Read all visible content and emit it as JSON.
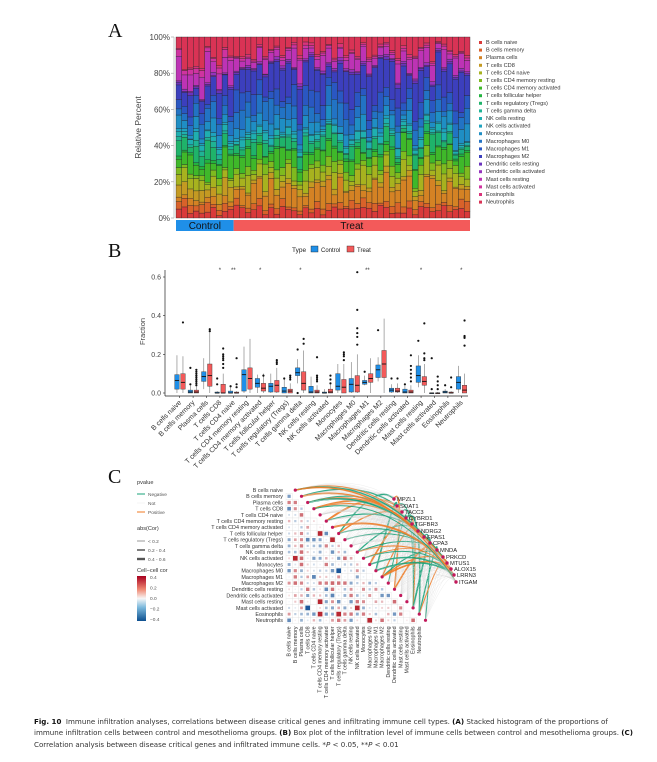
{
  "figure": {
    "panels": [
      "A",
      "B",
      "C"
    ],
    "caption": {
      "label": "Fig. 10",
      "text_1": "Immune infiltration analyses, correlations between disease critical genes and infiltrating immune cell types. ",
      "a_label": "(A)",
      "a_text": " Stacked histogram of the proportions of immune infiltration cells between control and mesothelioma groups. ",
      "b_label": "(B)",
      "b_text": " Box plot of the infiltration level of immune cells between control and mesothelioma groups. ",
      "c_label": "(C)",
      "c_text": " Correlation analysis between disease critical genes and infiltrated immune cells. *",
      "p1": "P",
      "t1": " < 0.05, **",
      "p2": "P",
      "t2": " < 0.01"
    }
  },
  "chart_data": [
    {
      "panel": "A",
      "type": "bar",
      "stacked": true,
      "title": "",
      "xlabel": "",
      "ylabel": "Relative Percent",
      "ylim": [
        0,
        100
      ],
      "yticks": [
        "0%",
        "20%",
        "40%",
        "60%",
        "80%",
        "100%"
      ],
      "groups": [
        {
          "name": "Control",
          "count": 10,
          "color": "#1f8fe8"
        },
        {
          "name": "Treat",
          "count": 41,
          "color": "#f35a5a"
        }
      ],
      "legend_position": "right",
      "series": [
        {
          "name": "B cells naive",
          "color": "#d93a3a"
        },
        {
          "name": "B cells memory",
          "color": "#d9622a"
        },
        {
          "name": "Plasma cells",
          "color": "#d48224"
        },
        {
          "name": "T cells CD8",
          "color": "#c49a22"
        },
        {
          "name": "T cells CD4 naive",
          "color": "#a7b21f"
        },
        {
          "name": "T cells CD4 memory resting",
          "color": "#7fba1f"
        },
        {
          "name": "T cells CD4 memory activated",
          "color": "#3fb82a"
        },
        {
          "name": "T cells follicular helper",
          "color": "#22b33f"
        },
        {
          "name": "T cells regulatory (Tregs)",
          "color": "#1fb36a"
        },
        {
          "name": "T cells gamma delta",
          "color": "#1fb394"
        },
        {
          "name": "NK cells resting",
          "color": "#1fafb0"
        },
        {
          "name": "NK cells activated",
          "color": "#1fa3bf"
        },
        {
          "name": "Monocytes",
          "color": "#1f8ec4"
        },
        {
          "name": "Macrophages M0",
          "color": "#2273c4"
        },
        {
          "name": "Macrophages M1",
          "color": "#2a57c2"
        },
        {
          "name": "Macrophages M2",
          "color": "#3c3fbd"
        },
        {
          "name": "Dendritic cells resting",
          "color": "#6a33bd"
        },
        {
          "name": "Dendritic cells activated",
          "color": "#9533bd"
        },
        {
          "name": "Mast cells resting",
          "color": "#bd33b5"
        },
        {
          "name": "Mast cells activated",
          "color": "#cf33a0"
        },
        {
          "name": "Eosinophils",
          "color": "#d9337a"
        },
        {
          "name": "Neutrophils",
          "color": "#d93355"
        }
      ],
      "approx_group_means_percent": {
        "Control": [
          4,
          3,
          4,
          8,
          5,
          3,
          8,
          1,
          6,
          2,
          3,
          1,
          5,
          6,
          4,
          10,
          1,
          1,
          10,
          3,
          1,
          12
        ],
        "Treat": [
          4,
          3,
          9,
          2,
          6,
          4,
          7,
          1,
          5,
          1,
          3,
          1,
          5,
          7,
          7,
          15,
          1,
          1,
          7,
          1,
          1,
          7
        ]
      }
    },
    {
      "panel": "B",
      "type": "box",
      "title": "",
      "xlabel": "",
      "ylabel": "Fraction",
      "ylim": [
        0,
        0.65
      ],
      "yticks": [
        "0.0",
        "0.2",
        "0.4",
        "0.6"
      ],
      "legend": {
        "title": "Type",
        "entries": [
          {
            "name": "Control",
            "color": "#1f8fe8"
          },
          {
            "name": "Treat",
            "color": "#f35a5a"
          }
        ],
        "position": "top"
      },
      "categories": [
        "B cells naive",
        "B cells memory",
        "Plasma cells",
        "T cells CD8",
        "T cells CD4 naive",
        "T cells CD4 memory resting",
        "T cells CD4 memory activated",
        "T cells follicular helper",
        "T cells regulatory (Tregs)",
        "T cells gamma delta",
        "NK cells resting",
        "NK cells activated",
        "Monocytes",
        "Macrophages M0",
        "Macrophages M1",
        "Macrophages M2",
        "Dendritic cells resting",
        "Dendritic cells activated",
        "Mast cells resting",
        "Mast cells activated",
        "Eosinophils",
        "Neutrophils"
      ],
      "significance": [
        "",
        "",
        "",
        "*",
        "**",
        "",
        "*",
        "",
        "",
        "*",
        "",
        "",
        "",
        "",
        "**",
        "",
        "",
        "",
        "*",
        "",
        "",
        "*"
      ],
      "series": [
        {
          "name": "Control",
          "boxes": [
            [
              0.0,
              0.02,
              0.065,
              0.095,
              0.195
            ],
            [
              0.0,
              0.0,
              0.005,
              0.015,
              0.04
            ],
            [
              0.02,
              0.06,
              0.085,
              0.11,
              0.18
            ],
            [
              0.0,
              0.0,
              0.0,
              0.005,
              0.01
            ],
            [
              0.0,
              0.0,
              0.0,
              0.01,
              0.03
            ],
            [
              0.0,
              0.01,
              0.095,
              0.12,
              0.24
            ],
            [
              0.0,
              0.03,
              0.05,
              0.075,
              0.095
            ],
            [
              0.0,
              0.005,
              0.035,
              0.05,
              0.1
            ],
            [
              0.0,
              0.0,
              0.01,
              0.03,
              0.07
            ],
            [
              0.05,
              0.09,
              0.105,
              0.13,
              0.175
            ],
            [
              0.0,
              0.0,
              0.005,
              0.035,
              0.085
            ],
            [
              0.0,
              0.0,
              0.0,
              0.005,
              0.02
            ],
            [
              0.0,
              0.015,
              0.035,
              0.1,
              0.15
            ],
            [
              0.0,
              0.005,
              0.045,
              0.075,
              0.16
            ],
            [
              0.04,
              0.045,
              0.055,
              0.065,
              0.09
            ],
            [
              0.06,
              0.08,
              0.12,
              0.145,
              0.185
            ],
            [
              0.0,
              0.005,
              0.015,
              0.025,
              0.045
            ],
            [
              0.0,
              0.0,
              0.005,
              0.02,
              0.04
            ],
            [
              0.03,
              0.055,
              0.09,
              0.14,
              0.195
            ],
            [
              0.0,
              0.0,
              0.0,
              0.0,
              0.0
            ],
            [
              0.0,
              0.0,
              0.005,
              0.01,
              0.02
            ],
            [
              0.0,
              0.02,
              0.055,
              0.085,
              0.14
            ]
          ],
          "outliers": [
            [],
            [
              0.13,
              0.045
            ],
            [],
            [
              0.075,
              0.045
            ],
            [
              0.035
            ],
            [],
            [],
            [],
            [
              0.075
            ],
            [
              0.225,
              0.0
            ],
            [],
            [],
            [],
            [],
            [
              0.11
            ],
            [
              0.325
            ],
            [
              0.075
            ],
            [
              0.045
            ],
            [
              0.27
            ],
            [
              0.18,
              0.02
            ],
            [
              0.04
            ],
            []
          ]
        },
        {
          "name": "Treat",
          "boxes": [
            [
              0.0,
              0.02,
              0.055,
              0.1,
              0.19
            ],
            [
              0.0,
              0.0,
              0.005,
              0.015,
              0.035
            ],
            [
              0.0,
              0.035,
              0.09,
              0.15,
              0.325
            ],
            [
              0.0,
              0.0,
              0.0,
              0.045,
              0.1
            ],
            [
              0.0,
              0.0,
              0.0,
              0.005,
              0.01
            ],
            [
              0.0,
              0.02,
              0.075,
              0.13,
              0.28
            ],
            [
              0.0,
              0.01,
              0.025,
              0.05,
              0.1
            ],
            [
              0.0,
              0.005,
              0.04,
              0.065,
              0.13
            ],
            [
              0.0,
              0.0,
              0.01,
              0.02,
              0.05
            ],
            [
              0.0,
              0.015,
              0.05,
              0.11,
              0.22
            ],
            [
              0.0,
              0.0,
              0.005,
              0.015,
              0.04
            ],
            [
              0.0,
              0.0,
              0.005,
              0.02,
              0.05
            ],
            [
              0.0,
              0.0,
              0.03,
              0.07,
              0.15
            ],
            [
              0.0,
              0.005,
              0.04,
              0.09,
              0.2
            ],
            [
              0.0,
              0.055,
              0.075,
              0.1,
              0.18
            ],
            [
              0.0,
              0.08,
              0.15,
              0.22,
              0.385
            ],
            [
              0.0,
              0.005,
              0.01,
              0.025,
              0.05
            ],
            [
              0.0,
              0.0,
              0.005,
              0.015,
              0.04
            ],
            [
              0.0,
              0.04,
              0.06,
              0.085,
              0.15
            ],
            [
              0.0,
              0.0,
              0.0,
              0.0,
              0.005
            ],
            [
              0.0,
              0.0,
              0.0,
              0.005,
              0.01
            ],
            [
              0.0,
              0.0,
              0.015,
              0.04,
              0.1
            ]
          ],
          "outliers": [
            [
              0.365
            ],
            [
              0.12,
              0.11,
              0.1,
              0.09,
              0.08,
              0.07,
              0.06,
              0.05,
              0.04
            ],
            [
              0.33,
              0.32
            ],
            [
              0.23,
              0.2,
              0.19,
              0.18,
              0.17,
              0.15,
              0.13
            ],
            [
              0.18,
              0.045,
              0.03
            ],
            [],
            [
              0.09
            ],
            [
              0.17,
              0.16,
              0.15
            ],
            [
              0.09,
              0.08,
              0.07
            ],
            [
              0.28,
              0.255
            ],
            [
              0.185,
              0.09,
              0.08,
              0.07,
              0.06
            ],
            [
              0.09,
              0.07,
              0.05
            ],
            [
              0.21,
              0.2,
              0.19,
              0.17
            ],
            [
              0.625,
              0.43,
              0.335,
              0.31,
              0.29,
              0.25
            ],
            [],
            [],
            [
              0.075
            ],
            [
              0.195,
              0.14,
              0.12,
              0.1,
              0.08,
              0.06
            ],
            [
              0.36,
              0.205,
              0.18,
              0.17
            ],
            [
              0.085,
              0.06,
              0.04,
              0.02
            ],
            [
              0.08,
              0.03
            ],
            [
              0.375,
              0.295,
              0.29,
              0.285,
              0.245
            ]
          ]
        }
      ]
    },
    {
      "panel": "C",
      "type": "heatmap",
      "title": "",
      "cells": [
        "B cells naive",
        "B cells memory",
        "Plasma cells",
        "T cells CD8",
        "T cells CD4 naive",
        "T cells CD4 memory resting",
        "T cells CD4 memory activated",
        "T cells follicular helper",
        "T cells regulatory (Tregs)",
        "T cells gamma delta",
        "NK cells resting",
        "NK cells activated",
        "Monocytes",
        "Macrophages M0",
        "Macrophages M1",
        "Macrophages M2",
        "Dendritic cells resting",
        "Dendritic cells activated",
        "Mast cells resting",
        "Mast cells activated",
        "Eosinophils",
        "Neutrophils"
      ],
      "genes": [
        "MPZL1",
        "SOAT1",
        "TACC3",
        "CYBRD1",
        "TGFBR3",
        "NDRG2",
        "EPAS1",
        "CPA3",
        "MNDA",
        "PRKCD",
        "MTUS1",
        "ALOX15",
        "LRRN3",
        "ITGAM"
      ],
      "legend": {
        "pvalue_title": "pvalue",
        "pvalue_entries": [
          {
            "name": "Negative",
            "color": "#1aa37a"
          },
          {
            "name": "Not",
            "color": "#cccccc"
          },
          {
            "name": "Positive",
            "color": "#f07a22"
          }
        ],
        "abs_title": "abs(Cor)",
        "abs_entries": [
          "< 0.2",
          "0.2 - 0.4",
          "0.4 - 0.6"
        ],
        "colorbar_title": "Cell−cell cor",
        "colorbar_ticks": [
          "0.4",
          "0.2",
          "0.0",
          "−0.2",
          "−0.4"
        ],
        "colorbar_range": [
          -0.5,
          0.5
        ]
      },
      "matrix_seed": 42
    }
  ]
}
